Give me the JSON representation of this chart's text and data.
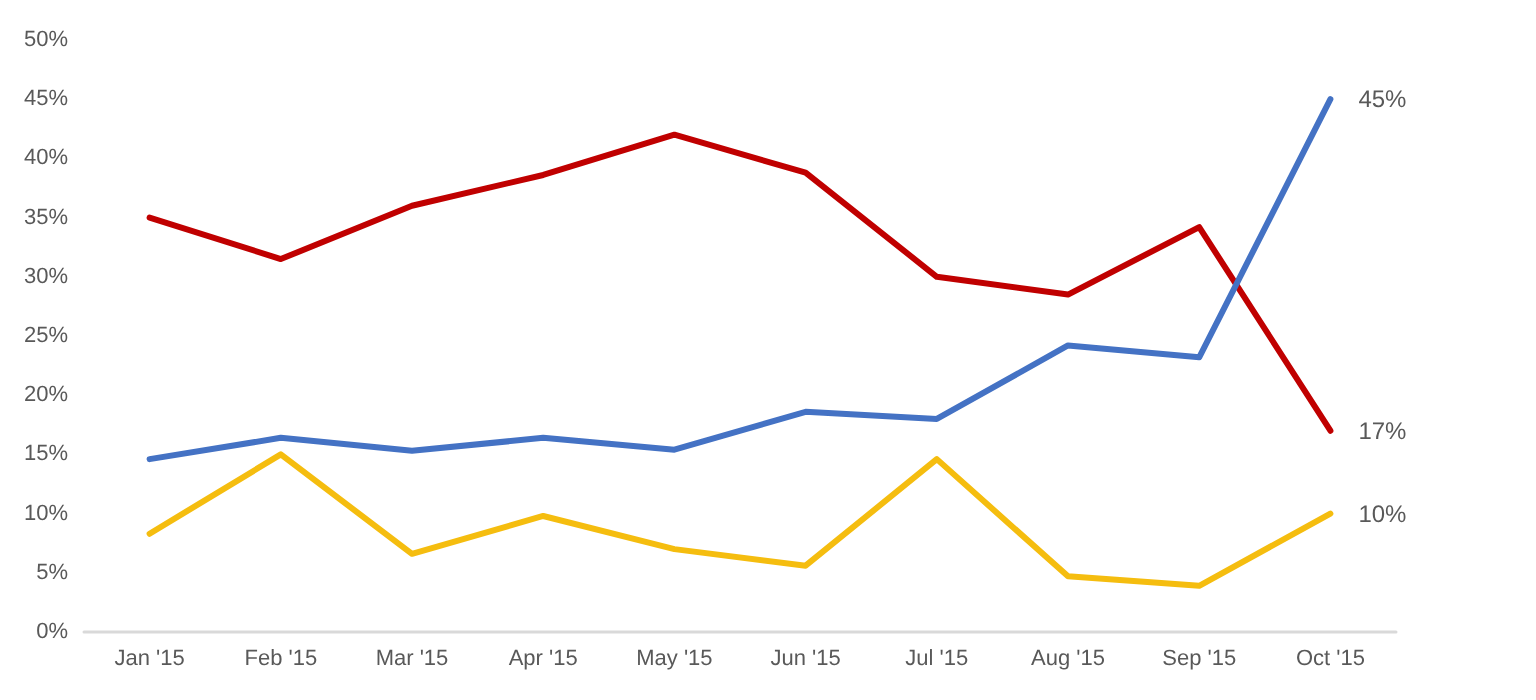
{
  "chart_data": {
    "type": "line",
    "categories": [
      "Jan '15",
      "Feb '15",
      "Mar '15",
      "Apr '15",
      "May '15",
      "Jun '15",
      "Jul '15",
      "Aug '15",
      "Sep '15",
      "Oct '15"
    ],
    "series": [
      {
        "color": "#c00000",
        "values": [
          35,
          31.5,
          36,
          38.6,
          42,
          38.8,
          30,
          28.5,
          34.2,
          17
        ],
        "value_labels": [
          null,
          null,
          null,
          null,
          null,
          null,
          null,
          null,
          null,
          "17%"
        ]
      },
      {
        "color": "#4472c4",
        "values": [
          14.6,
          16.4,
          15.3,
          16.4,
          15.4,
          18.6,
          18,
          24.2,
          23.2,
          45
        ],
        "value_labels": [
          null,
          null,
          null,
          null,
          null,
          null,
          null,
          null,
          null,
          "45%"
        ]
      },
      {
        "color": "#f5bd0f",
        "values": [
          8.3,
          15,
          6.6,
          9.8,
          7,
          5.6,
          14.6,
          4.7,
          3.9,
          10
        ],
        "value_labels": [
          null,
          null,
          null,
          null,
          null,
          null,
          null,
          null,
          null,
          "10%"
        ]
      }
    ],
    "ylim": [
      0,
      50
    ],
    "yticks": [
      {
        "value": 0,
        "label": "0%"
      },
      {
        "value": 5,
        "label": "5%"
      },
      {
        "value": 10,
        "label": "10%"
      },
      {
        "value": 15,
        "label": "15%"
      },
      {
        "value": 20,
        "label": "20%"
      },
      {
        "value": 25,
        "label": "25%"
      },
      {
        "value": 30,
        "label": "30%"
      },
      {
        "value": 35,
        "label": "35%"
      },
      {
        "value": 40,
        "label": "40%"
      },
      {
        "value": 45,
        "label": "45%"
      },
      {
        "value": 50,
        "label": "50%"
      }
    ],
    "grid": false,
    "marker": "none",
    "line_style": "solid"
  }
}
